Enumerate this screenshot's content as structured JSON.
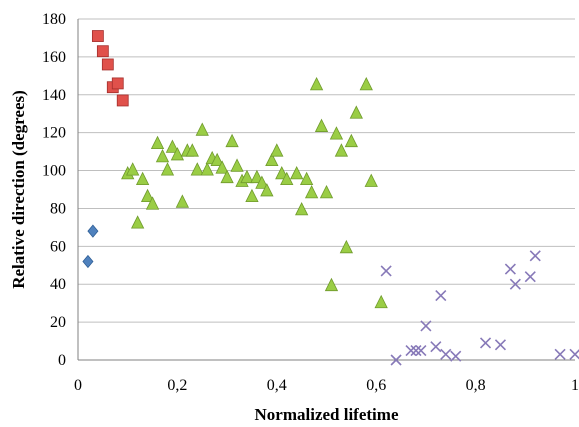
{
  "chart_data": {
    "type": "scatter",
    "title": "",
    "xlabel": "Normalized lifetime",
    "ylabel": "Relative direction (degrees)",
    "xlim": [
      0,
      1
    ],
    "ylim": [
      0,
      180
    ],
    "x_ticks": [
      0,
      0.2,
      0.4,
      0.6,
      0.8,
      1
    ],
    "x_tick_labels": [
      "0",
      "0,2",
      "0,4",
      "0,6",
      "0,8",
      "1"
    ],
    "y_ticks": [
      0,
      20,
      40,
      60,
      80,
      100,
      120,
      140,
      160,
      180
    ],
    "y_tick_labels": [
      "0",
      "20",
      "40",
      "60",
      "80",
      "100",
      "120",
      "140",
      "160",
      "180"
    ],
    "grid": "horizontal",
    "legend": "none",
    "series": [
      {
        "marker": "diamond",
        "color": "#4f81bd",
        "points": [
          [
            0.03,
            68
          ],
          [
            0.02,
            52
          ]
        ]
      },
      {
        "marker": "square",
        "color": "#e0514b",
        "points": [
          [
            0.04,
            171
          ],
          [
            0.05,
            163
          ],
          [
            0.06,
            156
          ],
          [
            0.07,
            144
          ],
          [
            0.08,
            146
          ],
          [
            0.09,
            137
          ]
        ]
      },
      {
        "marker": "triangle",
        "color": "#9acd45",
        "points": [
          [
            0.1,
            98
          ],
          [
            0.11,
            100
          ],
          [
            0.12,
            72
          ],
          [
            0.13,
            95
          ],
          [
            0.14,
            86
          ],
          [
            0.15,
            82
          ],
          [
            0.16,
            114
          ],
          [
            0.17,
            107
          ],
          [
            0.18,
            100
          ],
          [
            0.19,
            112
          ],
          [
            0.2,
            108
          ],
          [
            0.21,
            83
          ],
          [
            0.22,
            110
          ],
          [
            0.23,
            110
          ],
          [
            0.24,
            100
          ],
          [
            0.25,
            121
          ],
          [
            0.26,
            100
          ],
          [
            0.27,
            106
          ],
          [
            0.28,
            105
          ],
          [
            0.29,
            101
          ],
          [
            0.3,
            96
          ],
          [
            0.31,
            115
          ],
          [
            0.32,
            102
          ],
          [
            0.33,
            94
          ],
          [
            0.34,
            96
          ],
          [
            0.35,
            86
          ],
          [
            0.36,
            96
          ],
          [
            0.37,
            93
          ],
          [
            0.38,
            89
          ],
          [
            0.39,
            105
          ],
          [
            0.4,
            110
          ],
          [
            0.41,
            98
          ],
          [
            0.42,
            95
          ],
          [
            0.44,
            98
          ],
          [
            0.45,
            79
          ],
          [
            0.46,
            95
          ],
          [
            0.47,
            88
          ],
          [
            0.48,
            145
          ],
          [
            0.49,
            123
          ],
          [
            0.5,
            88
          ],
          [
            0.51,
            39
          ],
          [
            0.52,
            119
          ],
          [
            0.53,
            110
          ],
          [
            0.54,
            59
          ],
          [
            0.55,
            115
          ],
          [
            0.56,
            130
          ],
          [
            0.58,
            145
          ],
          [
            0.59,
            94
          ],
          [
            0.61,
            30
          ]
        ]
      },
      {
        "marker": "x",
        "color": "#8779b8",
        "points": [
          [
            0.62,
            47
          ],
          [
            0.64,
            0
          ],
          [
            0.67,
            5
          ],
          [
            0.68,
            5
          ],
          [
            0.69,
            5
          ],
          [
            0.7,
            18
          ],
          [
            0.72,
            7
          ],
          [
            0.73,
            34
          ],
          [
            0.74,
            3
          ],
          [
            0.76,
            2
          ],
          [
            0.82,
            9
          ],
          [
            0.85,
            8
          ],
          [
            0.87,
            48
          ],
          [
            0.88,
            40
          ],
          [
            0.91,
            44
          ],
          [
            0.92,
            55
          ],
          [
            0.97,
            3
          ],
          [
            1.0,
            3
          ]
        ]
      }
    ]
  }
}
